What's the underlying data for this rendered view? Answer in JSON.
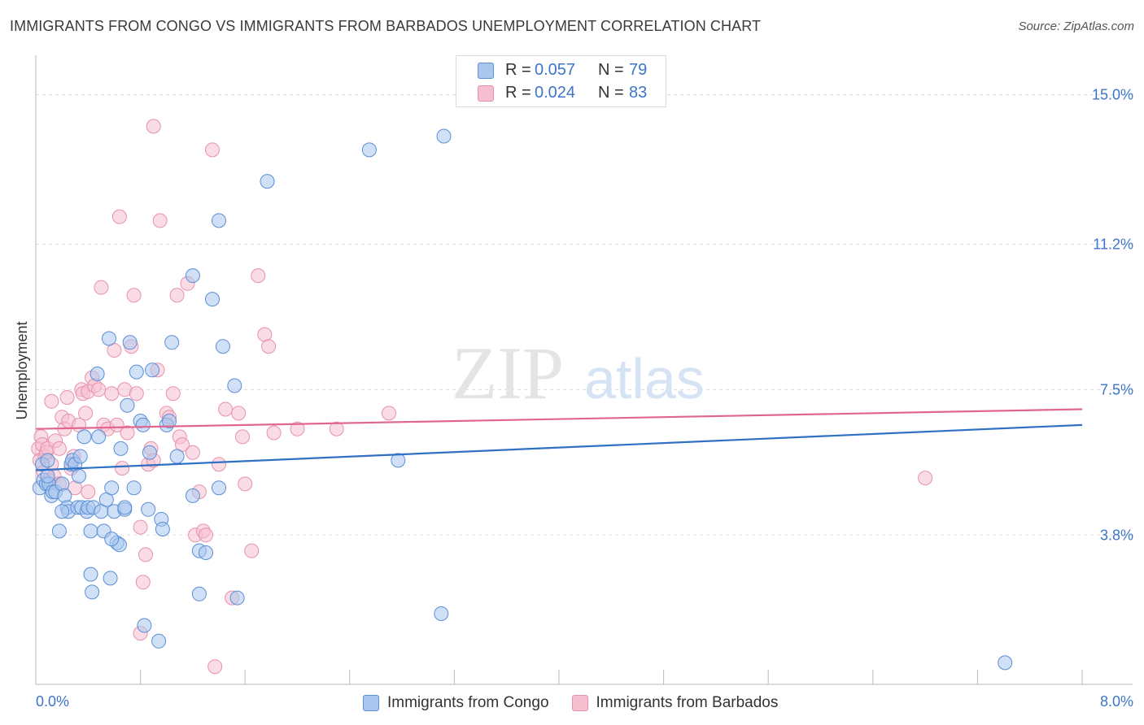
{
  "title": "IMMIGRANTS FROM CONGO VS IMMIGRANTS FROM BARBADOS UNEMPLOYMENT CORRELATION CHART",
  "source": "Source: ZipAtlas.com",
  "watermark": {
    "zip": "ZIP",
    "atlas": "atlas"
  },
  "colors": {
    "congo_fill": "#a9c6ef",
    "congo_stroke": "#5b8fd6",
    "congo_line": "#2f6fc4",
    "barbados_fill": "#f6bfd0",
    "barbados_stroke": "#e791ad",
    "barbados_line": "#e0668f",
    "tick_label": "#3d75c9",
    "grid": "#dddddd"
  },
  "stats": {
    "congo": {
      "r_label": "R =",
      "r_value": "0.057",
      "n_label": "N =",
      "n_value": "79"
    },
    "barbados": {
      "r_label": "R =",
      "r_value": "0.024",
      "n_label": "N =",
      "n_value": "83"
    }
  },
  "legend": {
    "congo": "Immigrants from Congo",
    "barbados": "Immigrants from Barbados"
  },
  "chart_data": {
    "type": "scatter",
    "title": "IMMIGRANTS FROM CONGO VS IMMIGRANTS FROM BARBADOS UNEMPLOYMENT CORRELATION CHART",
    "xlabel": "",
    "ylabel": "Unemployment",
    "xlim": [
      0,
      8.0
    ],
    "ylim": [
      0,
      15.8
    ],
    "x_tick_labels": {
      "min": "0.0%",
      "max": "8.0%"
    },
    "y_ticks": [
      {
        "value": 3.8,
        "label": "3.8%"
      },
      {
        "value": 7.5,
        "label": "7.5%"
      },
      {
        "value": 11.2,
        "label": "11.2%"
      },
      {
        "value": 15.0,
        "label": "15.0%"
      }
    ],
    "series": [
      {
        "name": "Immigrants from Congo",
        "trend": {
          "x0": 0.0,
          "y0": 5.45,
          "x1": 8.0,
          "y1": 6.6
        },
        "points": [
          [
            0.03,
            5.0
          ],
          [
            0.05,
            5.6
          ],
          [
            0.06,
            5.2
          ],
          [
            0.08,
            5.1
          ],
          [
            0.09,
            5.7
          ],
          [
            0.1,
            5.1
          ],
          [
            0.12,
            4.8
          ],
          [
            0.13,
            4.9
          ],
          [
            0.15,
            4.9
          ],
          [
            0.18,
            3.9
          ],
          [
            0.2,
            5.1
          ],
          [
            0.22,
            4.8
          ],
          [
            0.24,
            4.5
          ],
          [
            0.25,
            4.4
          ],
          [
            0.27,
            5.6
          ],
          [
            0.28,
            5.7
          ],
          [
            0.3,
            5.6
          ],
          [
            0.32,
            4.5
          ],
          [
            0.34,
            5.8
          ],
          [
            0.35,
            4.5
          ],
          [
            0.37,
            6.3
          ],
          [
            0.39,
            4.4
          ],
          [
            0.4,
            4.5
          ],
          [
            0.42,
            3.9
          ],
          [
            0.42,
            2.8
          ],
          [
            0.43,
            2.35
          ],
          [
            0.44,
            4.5
          ],
          [
            0.47,
            7.9
          ],
          [
            0.5,
            4.4
          ],
          [
            0.52,
            3.9
          ],
          [
            0.54,
            4.7
          ],
          [
            0.56,
            8.8
          ],
          [
            0.57,
            2.7
          ],
          [
            0.58,
            5.0
          ],
          [
            0.6,
            4.4
          ],
          [
            0.62,
            3.6
          ],
          [
            0.64,
            3.55
          ],
          [
            0.65,
            6.0
          ],
          [
            0.68,
            4.45
          ],
          [
            0.7,
            7.1
          ],
          [
            0.72,
            8.7
          ],
          [
            0.75,
            5.0
          ],
          [
            0.77,
            7.95
          ],
          [
            0.8,
            6.7
          ],
          [
            0.82,
            6.6
          ],
          [
            0.83,
            1.5
          ],
          [
            0.86,
            4.45
          ],
          [
            0.87,
            5.9
          ],
          [
            0.89,
            8.0
          ],
          [
            0.94,
            1.1
          ],
          [
            0.96,
            4.2
          ],
          [
            0.97,
            3.95
          ],
          [
            1.0,
            6.6
          ],
          [
            1.02,
            6.7
          ],
          [
            1.04,
            8.7
          ],
          [
            1.08,
            5.8
          ],
          [
            1.2,
            10.4
          ],
          [
            1.2,
            4.8
          ],
          [
            1.25,
            3.4
          ],
          [
            1.25,
            2.3
          ],
          [
            1.3,
            3.35
          ],
          [
            1.35,
            9.8
          ],
          [
            1.4,
            11.8
          ],
          [
            1.4,
            5.0
          ],
          [
            1.43,
            8.6
          ],
          [
            1.52,
            7.6
          ],
          [
            1.54,
            2.2
          ],
          [
            1.77,
            12.8
          ],
          [
            2.55,
            13.6
          ],
          [
            2.77,
            5.7
          ],
          [
            3.1,
            1.8
          ],
          [
            3.12,
            13.95
          ],
          [
            7.41,
            0.55
          ],
          [
            0.09,
            5.3
          ],
          [
            0.2,
            4.4
          ],
          [
            0.33,
            5.3
          ],
          [
            0.58,
            3.7
          ],
          [
            0.68,
            4.5
          ],
          [
            0.48,
            6.3
          ]
        ]
      },
      {
        "name": "Immigrants from Barbados",
        "trend": {
          "x0": 0.0,
          "y0": 6.5,
          "x1": 8.0,
          "y1": 7.0
        },
        "points": [
          [
            0.02,
            6.0
          ],
          [
            0.03,
            5.7
          ],
          [
            0.04,
            6.3
          ],
          [
            0.05,
            6.1
          ],
          [
            0.06,
            5.4
          ],
          [
            0.07,
            5.8
          ],
          [
            0.08,
            5.9
          ],
          [
            0.09,
            6.0
          ],
          [
            0.1,
            5.2
          ],
          [
            0.12,
            5.6
          ],
          [
            0.14,
            5.3
          ],
          [
            0.15,
            6.2
          ],
          [
            0.18,
            6.0
          ],
          [
            0.2,
            6.8
          ],
          [
            0.22,
            6.5
          ],
          [
            0.24,
            7.3
          ],
          [
            0.25,
            6.7
          ],
          [
            0.27,
            5.5
          ],
          [
            0.29,
            5.8
          ],
          [
            0.3,
            5.0
          ],
          [
            0.33,
            6.6
          ],
          [
            0.35,
            7.5
          ],
          [
            0.36,
            7.4
          ],
          [
            0.38,
            6.9
          ],
          [
            0.4,
            7.45
          ],
          [
            0.43,
            7.8
          ],
          [
            0.45,
            7.6
          ],
          [
            0.48,
            7.5
          ],
          [
            0.5,
            10.1
          ],
          [
            0.52,
            6.6
          ],
          [
            0.55,
            6.5
          ],
          [
            0.58,
            7.4
          ],
          [
            0.6,
            8.5
          ],
          [
            0.62,
            6.6
          ],
          [
            0.64,
            11.9
          ],
          [
            0.66,
            5.5
          ],
          [
            0.68,
            7.5
          ],
          [
            0.7,
            6.4
          ],
          [
            0.73,
            8.6
          ],
          [
            0.75,
            9.9
          ],
          [
            0.77,
            7.4
          ],
          [
            0.8,
            4.0
          ],
          [
            0.82,
            2.6
          ],
          [
            0.84,
            3.3
          ],
          [
            0.86,
            5.6
          ],
          [
            0.88,
            6.0
          ],
          [
            0.9,
            5.7
          ],
          [
            0.93,
            8.0
          ],
          [
            0.95,
            11.8
          ],
          [
            1.0,
            6.9
          ],
          [
            1.02,
            6.8
          ],
          [
            1.05,
            7.4
          ],
          [
            1.08,
            9.9
          ],
          [
            1.1,
            6.3
          ],
          [
            1.12,
            6.1
          ],
          [
            1.16,
            10.2
          ],
          [
            1.2,
            5.9
          ],
          [
            1.22,
            3.8
          ],
          [
            1.25,
            4.9
          ],
          [
            1.28,
            3.9
          ],
          [
            1.3,
            3.8
          ],
          [
            1.35,
            13.6
          ],
          [
            1.4,
            5.6
          ],
          [
            1.45,
            7.0
          ],
          [
            1.5,
            2.2
          ],
          [
            1.55,
            6.9
          ],
          [
            1.58,
            6.3
          ],
          [
            1.6,
            5.1
          ],
          [
            1.65,
            3.4
          ],
          [
            1.7,
            10.4
          ],
          [
            1.75,
            8.9
          ],
          [
            1.78,
            8.6
          ],
          [
            1.82,
            6.4
          ],
          [
            2.0,
            6.5
          ],
          [
            2.3,
            6.5
          ],
          [
            2.7,
            6.9
          ],
          [
            6.8,
            5.25
          ],
          [
            0.9,
            14.2
          ],
          [
            0.8,
            1.3
          ],
          [
            1.37,
            0.45
          ],
          [
            0.18,
            5.1
          ],
          [
            0.12,
            7.2
          ],
          [
            0.4,
            4.9
          ]
        ]
      }
    ]
  }
}
